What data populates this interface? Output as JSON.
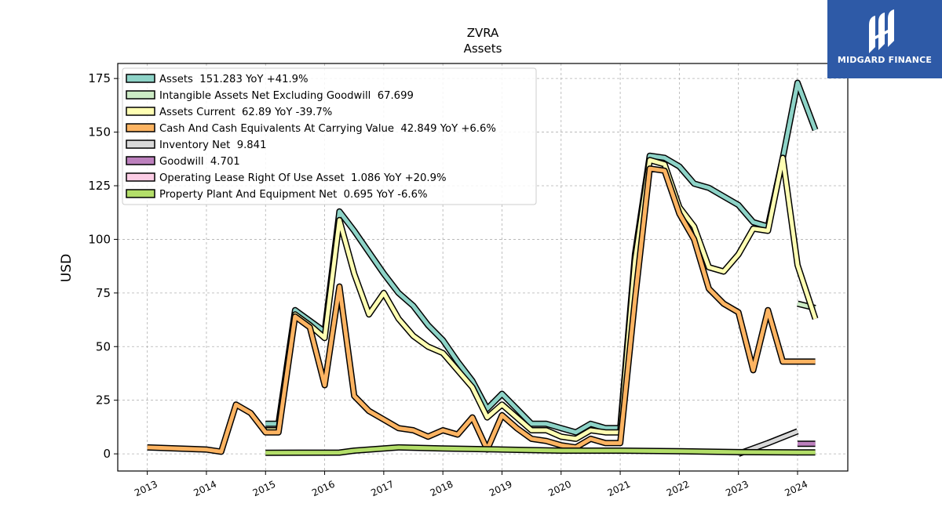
{
  "brand": {
    "name": "MIDGARD FINANCE",
    "color": "#2e5aa7",
    "icon": "midgard-logo-icon"
  },
  "chart_data": {
    "type": "line",
    "title": "ZVRA",
    "subtitle": "Assets",
    "ylabel": "USD",
    "xlabel": "",
    "xlim": [
      2012.5,
      2024.85
    ],
    "ylim": [
      -8,
      182
    ],
    "yticks": [
      0,
      25,
      50,
      75,
      100,
      125,
      150,
      175
    ],
    "xticks": [
      "2013",
      "2014",
      "2015",
      "2016",
      "2017",
      "2018",
      "2019",
      "2020",
      "2021",
      "2022",
      "2023",
      "2024"
    ],
    "grid": true,
    "legend_position": "top-left",
    "series": [
      {
        "name": "Assets",
        "legend": "Assets  151.283 YoY +41.9%",
        "color": "#8dd3c7",
        "points": [
          [
            2015.0,
            14
          ],
          [
            2015.22,
            14
          ],
          [
            2015.5,
            67
          ],
          [
            2015.75,
            62
          ],
          [
            2016.0,
            57
          ],
          [
            2016.25,
            113
          ],
          [
            2016.5,
            104
          ],
          [
            2016.75,
            94
          ],
          [
            2017.0,
            84
          ],
          [
            2017.25,
            75
          ],
          [
            2017.5,
            69
          ],
          [
            2017.75,
            60
          ],
          [
            2018.0,
            53
          ],
          [
            2018.25,
            43
          ],
          [
            2018.5,
            34
          ],
          [
            2018.75,
            21
          ],
          [
            2019.0,
            28
          ],
          [
            2019.25,
            21
          ],
          [
            2019.5,
            14
          ],
          [
            2019.75,
            14
          ],
          [
            2020.0,
            12
          ],
          [
            2020.25,
            10
          ],
          [
            2020.5,
            14
          ],
          [
            2020.75,
            12
          ],
          [
            2021.0,
            12
          ],
          [
            2021.25,
            93
          ],
          [
            2021.5,
            139
          ],
          [
            2021.75,
            138
          ],
          [
            2022.0,
            134
          ],
          [
            2022.25,
            126
          ],
          [
            2022.5,
            124
          ],
          [
            2022.75,
            120
          ],
          [
            2023.0,
            116
          ],
          [
            2023.25,
            108
          ],
          [
            2023.5,
            106
          ],
          [
            2023.75,
            138
          ],
          [
            2024.0,
            173
          ],
          [
            2024.3,
            151
          ]
        ]
      },
      {
        "name": "Intangible Assets Net Excluding Goodwill",
        "legend": "Intangible Assets Net Excluding Goodwill  67.699",
        "color": "#ccebc5",
        "points": [
          [
            2024.0,
            70
          ],
          [
            2024.3,
            68
          ]
        ]
      },
      {
        "name": "Assets Current",
        "legend": "Assets Current  62.89 YoY -39.7%",
        "color": "#ffffb3",
        "points": [
          [
            2015.0,
            11
          ],
          [
            2015.22,
            11
          ],
          [
            2015.5,
            65
          ],
          [
            2015.75,
            60
          ],
          [
            2016.0,
            54
          ],
          [
            2016.25,
            109
          ],
          [
            2016.5,
            84
          ],
          [
            2016.75,
            65
          ],
          [
            2017.0,
            75
          ],
          [
            2017.25,
            63
          ],
          [
            2017.5,
            55
          ],
          [
            2017.75,
            50
          ],
          [
            2018.0,
            47
          ],
          [
            2018.25,
            39
          ],
          [
            2018.5,
            31
          ],
          [
            2018.75,
            17
          ],
          [
            2019.0,
            23
          ],
          [
            2019.25,
            17
          ],
          [
            2019.5,
            11
          ],
          [
            2019.75,
            11
          ],
          [
            2020.0,
            8
          ],
          [
            2020.25,
            7
          ],
          [
            2020.5,
            11
          ],
          [
            2020.75,
            10
          ],
          [
            2021.0,
            10
          ],
          [
            2021.25,
            90
          ],
          [
            2021.5,
            137
          ],
          [
            2021.75,
            135
          ],
          [
            2022.0,
            115
          ],
          [
            2022.25,
            106
          ],
          [
            2022.5,
            87
          ],
          [
            2022.75,
            85
          ],
          [
            2023.0,
            93
          ],
          [
            2023.25,
            105
          ],
          [
            2023.5,
            104
          ],
          [
            2023.75,
            138
          ],
          [
            2024.0,
            88
          ],
          [
            2024.3,
            63
          ]
        ]
      },
      {
        "name": "Cash And Cash Equivalents At Carrying Value",
        "legend": "Cash And Cash Equivalents At Carrying Value  42.849 YoY +6.6%",
        "color": "#fdb462",
        "points": [
          [
            2013.0,
            3
          ],
          [
            2014.0,
            2
          ],
          [
            2014.25,
            1
          ],
          [
            2014.5,
            23
          ],
          [
            2014.75,
            19
          ],
          [
            2015.0,
            10
          ],
          [
            2015.22,
            10
          ],
          [
            2015.5,
            64
          ],
          [
            2015.75,
            59
          ],
          [
            2016.0,
            32
          ],
          [
            2016.25,
            78
          ],
          [
            2016.5,
            27
          ],
          [
            2016.75,
            20
          ],
          [
            2017.0,
            16
          ],
          [
            2017.25,
            12
          ],
          [
            2017.5,
            11
          ],
          [
            2017.75,
            8
          ],
          [
            2018.0,
            11
          ],
          [
            2018.25,
            9
          ],
          [
            2018.5,
            17
          ],
          [
            2018.75,
            2
          ],
          [
            2019.0,
            18
          ],
          [
            2019.25,
            12
          ],
          [
            2019.5,
            7
          ],
          [
            2019.75,
            6
          ],
          [
            2020.0,
            4
          ],
          [
            2020.25,
            3
          ],
          [
            2020.5,
            7
          ],
          [
            2020.75,
            5
          ],
          [
            2021.0,
            5
          ],
          [
            2021.25,
            72
          ],
          [
            2021.5,
            133
          ],
          [
            2021.75,
            132
          ],
          [
            2022.0,
            112
          ],
          [
            2022.25,
            100
          ],
          [
            2022.5,
            77
          ],
          [
            2022.75,
            70
          ],
          [
            2023.0,
            66
          ],
          [
            2023.25,
            39
          ],
          [
            2023.5,
            67
          ],
          [
            2023.75,
            43
          ],
          [
            2024.3,
            43
          ]
        ]
      },
      {
        "name": "Inventory Net",
        "legend": "Inventory Net  9.841",
        "color": "#d9d9d9",
        "points": [
          [
            2023.0,
            0
          ],
          [
            2023.5,
            5
          ],
          [
            2024.0,
            10.5
          ]
        ]
      },
      {
        "name": "Goodwill",
        "legend": "Goodwill  4.701",
        "color": "#bc80bd",
        "points": [
          [
            2024.0,
            4.7
          ],
          [
            2024.3,
            4.7
          ]
        ]
      },
      {
        "name": "Operating Lease Right Of Use Asset",
        "legend": "Operating Lease Right Of Use Asset  1.086 YoY +20.9%",
        "color": "#fccde5",
        "points": []
      },
      {
        "name": "Property Plant And Equipment Net",
        "legend": "Property Plant And Equipment Net  0.695 YoY -6.6%",
        "color": "#b3de69",
        "points": [
          [
            2015.0,
            0.5
          ],
          [
            2016.25,
            0.6
          ],
          [
            2016.5,
            1.5
          ],
          [
            2017.0,
            2.5
          ],
          [
            2017.25,
            3
          ],
          [
            2018.0,
            2.5
          ],
          [
            2019.0,
            2
          ],
          [
            2020.0,
            1.5
          ],
          [
            2021.0,
            1.5
          ],
          [
            2022.0,
            1.2
          ],
          [
            2023.0,
            0.8
          ],
          [
            2024.0,
            0.7
          ],
          [
            2024.3,
            0.7
          ]
        ]
      }
    ]
  }
}
